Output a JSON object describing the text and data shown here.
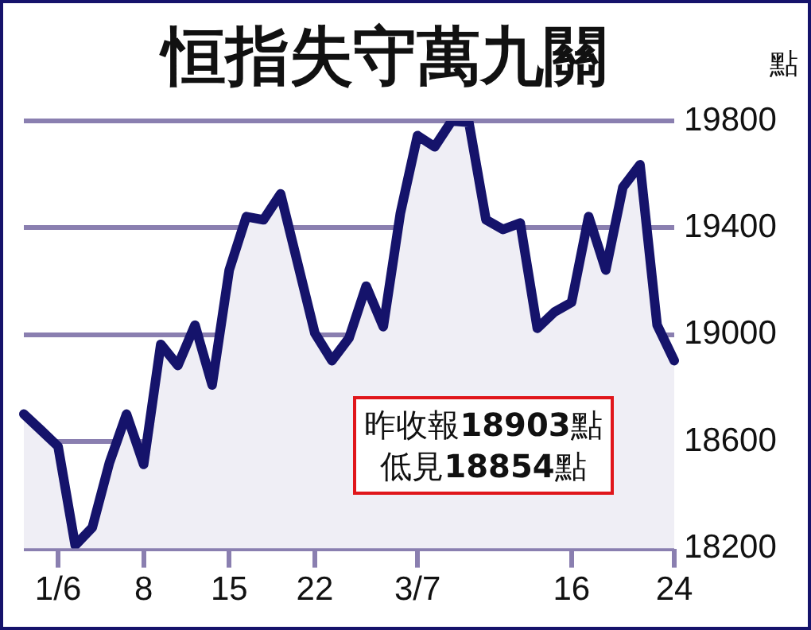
{
  "chart_data": {
    "type": "area",
    "title": "恒指失守萬九關",
    "ylabel": "點",
    "categories": [
      null,
      null,
      "1/6",
      null,
      null,
      null,
      null,
      "8",
      null,
      null,
      null,
      null,
      "15",
      null,
      null,
      null,
      null,
      "22",
      null,
      null,
      null,
      null,
      null,
      "3/7",
      null,
      null,
      null,
      null,
      null,
      null,
      null,
      null,
      "16",
      null,
      null,
      null,
      null,
      null,
      "24"
    ],
    "series": [
      {
        "color": "#15136b",
        "values": [
          18703,
          18643,
          18582,
          18212,
          18279,
          18521,
          18703,
          18515,
          18964,
          18885,
          19036,
          18812,
          19242,
          19442,
          19430,
          19527,
          19267,
          19006,
          18903,
          18988,
          19182,
          19030,
          19455,
          19745,
          19703,
          19800,
          19795,
          19430,
          19394,
          19418,
          19024,
          19085,
          19121,
          19442,
          19242,
          19552,
          19636,
          19036,
          18903
        ]
      }
    ],
    "ylim": [
      18200,
      19800
    ],
    "yticks": [
      18200,
      18600,
      19000,
      19400,
      19800
    ],
    "grid": "y",
    "legend": false,
    "marker": "none",
    "annotations": [
      "昨收報18903點",
      "低見18854點"
    ]
  }
}
